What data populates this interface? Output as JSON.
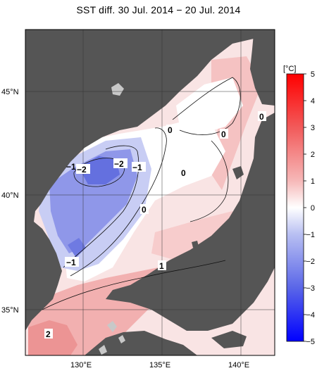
{
  "title": "SST diff. 30 Jul. 2014 − 20 Jul. 2014",
  "map": {
    "lat_labels": [
      "45°N",
      "40°N",
      "35°N"
    ],
    "lon_labels": [
      "130°E",
      "135°E",
      "140°E"
    ],
    "contour_labels": [
      "0",
      "0",
      "0",
      "0",
      "−2",
      "−2",
      "−1",
      "−1",
      "0",
      "−1",
      "1",
      "2"
    ],
    "colors": {
      "land": "#555555",
      "neg_strong": "#5c68de",
      "neg_mid": "#8a92e8",
      "neg_light": "#c3c8f3",
      "zero": "#ffffff",
      "pos_light": "#f9dede",
      "pos_mid": "#f4b3b3",
      "pos_strong": "#ee8a8a"
    }
  },
  "colorbar": {
    "unit": "[°C]",
    "ticks": [
      "5",
      "4",
      "3",
      "2",
      "1",
      "0",
      "−1",
      "−2",
      "−3",
      "−4",
      "−5"
    ]
  }
}
